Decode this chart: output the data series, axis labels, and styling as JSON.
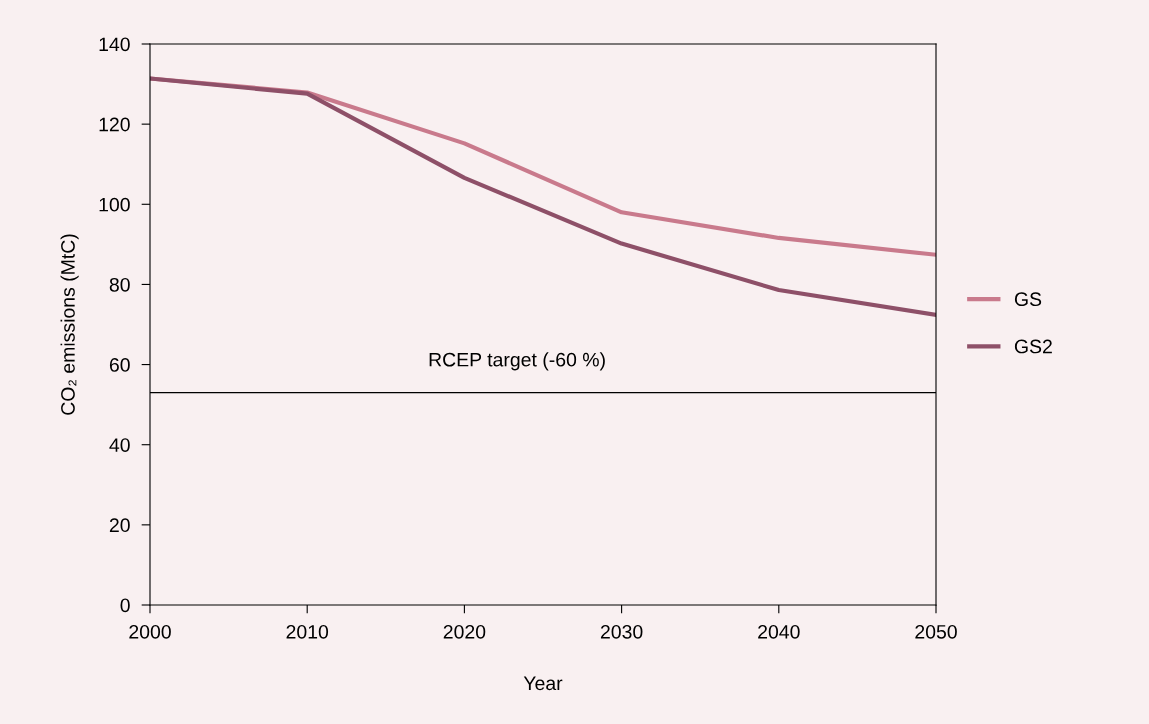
{
  "chart_data": {
    "type": "line",
    "xlabel": "Year",
    "ylabel": "CO₂ emissions (MtC)",
    "x": [
      2000,
      2010,
      2020,
      2030,
      2040,
      2050
    ],
    "series": [
      {
        "name": "GS",
        "color": "#c97a8c",
        "values": [
          131.4,
          127.9,
          115.2,
          98.0,
          91.6,
          87.4
        ]
      },
      {
        "name": "GS2",
        "color": "#8e5068",
        "values": [
          131.4,
          127.6,
          106.6,
          90.2,
          78.6,
          72.4
        ]
      }
    ],
    "xlim": [
      2000,
      2050
    ],
    "xticks": [
      2000,
      2010,
      2020,
      2030,
      2040,
      2050
    ],
    "ylim": [
      0,
      140
    ],
    "yticks": [
      0,
      20,
      40,
      60,
      80,
      100,
      120,
      140
    ],
    "ref_lines": [
      {
        "axis": "y",
        "value": 53,
        "label": "RCEP target (-60 %)",
        "color": "#000000",
        "line_style": "solid"
      }
    ],
    "grid": false,
    "legend": "right",
    "marker": "none",
    "line_style": "solid"
  }
}
